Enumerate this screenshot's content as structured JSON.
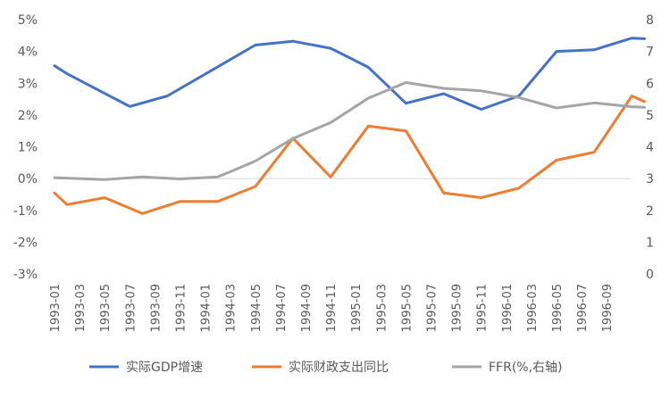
{
  "chart_data": {
    "type": "line",
    "x": [
      "1993-01",
      "1993-02",
      "1993-03",
      "1993-04",
      "1993-05",
      "1993-06",
      "1993-07",
      "1993-08",
      "1993-09",
      "1993-10",
      "1993-11",
      "1993-12",
      "1994-01",
      "1994-02",
      "1994-03",
      "1994-04",
      "1994-05",
      "1994-06",
      "1994-07",
      "1994-08",
      "1994-09",
      "1994-10",
      "1994-11",
      "1994-12",
      "1995-01",
      "1995-02",
      "1995-03",
      "1995-04",
      "1995-05",
      "1995-06",
      "1995-07",
      "1995-08",
      "1995-09",
      "1995-10",
      "1995-11",
      "1995-12",
      "1996-01",
      "1996-02",
      "1996-03",
      "1996-04",
      "1996-05",
      "1996-06",
      "1996-07",
      "1996-08",
      "1996-09",
      "1996-10",
      "1996-11"
    ],
    "x_tick_labels": [
      "1993-01",
      "1993-03",
      "1993-05",
      "1993-07",
      "1993-09",
      "1993-11",
      "1994-01",
      "1994-03",
      "1994-05",
      "1994-07",
      "1994-09",
      "1994-11",
      "1995-01",
      "1995-03",
      "1995-05",
      "1995-07",
      "1995-09",
      "1995-11",
      "1996-01",
      "1996-03",
      "1996-05",
      "1996-07",
      "1996-09"
    ],
    "y_left": {
      "min": -3,
      "max": 5,
      "ticks": [
        "-3%",
        "-2%",
        "-1%",
        "0%",
        "1%",
        "2%",
        "3%",
        "4%",
        "5%"
      ]
    },
    "y_right": {
      "min": 0,
      "max": 8,
      "ticks": [
        "0",
        "1",
        "2",
        "3",
        "4",
        "5",
        "6",
        "7",
        "8"
      ]
    },
    "grid": false,
    "legend_position": "bottom",
    "series": [
      {
        "name": "实际GDP增速",
        "color": "#4472C4",
        "axis": "left",
        "points": [
          [
            "1993-01",
            3.55
          ],
          [
            "1993-02",
            3.3
          ],
          [
            "1993-07",
            2.27
          ],
          [
            "1993-10",
            2.6
          ],
          [
            "1994-05",
            4.2
          ],
          [
            "1994-08",
            4.32
          ],
          [
            "1994-11",
            4.1
          ],
          [
            "1995-02",
            3.5
          ],
          [
            "1995-05",
            2.37
          ],
          [
            "1995-08",
            2.67
          ],
          [
            "1995-11",
            2.18
          ],
          [
            "1996-02",
            2.6
          ],
          [
            "1996-05",
            4.0
          ],
          [
            "1996-08",
            4.05
          ],
          [
            "1996-11",
            4.42
          ],
          [
            "1996-12",
            4.4
          ]
        ]
      },
      {
        "name": "实际财政支出同比",
        "color": "#ED7D31",
        "axis": "left",
        "points": [
          [
            "1993-01",
            -0.45
          ],
          [
            "1993-02",
            -0.82
          ],
          [
            "1993-05",
            -0.6
          ],
          [
            "1993-08",
            -1.1
          ],
          [
            "1993-11",
            -0.72
          ],
          [
            "1994-02",
            -0.72
          ],
          [
            "1994-05",
            -0.25
          ],
          [
            "1994-08",
            1.27
          ],
          [
            "1994-11",
            0.05
          ],
          [
            "1995-02",
            1.65
          ],
          [
            "1995-05",
            1.5
          ],
          [
            "1995-08",
            -0.45
          ],
          [
            "1995-11",
            -0.6
          ],
          [
            "1996-02",
            -0.3
          ],
          [
            "1996-05",
            0.58
          ],
          [
            "1996-08",
            0.83
          ],
          [
            "1996-11",
            2.6
          ],
          [
            "1996-12",
            2.42
          ]
        ]
      },
      {
        "name": "FFR(%,右轴)",
        "color": "#A5A5A5",
        "axis": "right",
        "points": [
          [
            "1993-01",
            3.03
          ],
          [
            "1993-05",
            2.97
          ],
          [
            "1993-08",
            3.05
          ],
          [
            "1993-11",
            2.99
          ],
          [
            "1994-02",
            3.05
          ],
          [
            "1994-05",
            3.55
          ],
          [
            "1994-08",
            4.26
          ],
          [
            "1994-11",
            4.76
          ],
          [
            "1995-02",
            5.53
          ],
          [
            "1995-05",
            6.02
          ],
          [
            "1995-08",
            5.84
          ],
          [
            "1995-11",
            5.76
          ],
          [
            "1996-02",
            5.55
          ],
          [
            "1996-05",
            5.22
          ],
          [
            "1996-08",
            5.38
          ],
          [
            "1996-11",
            5.26
          ],
          [
            "1996-12",
            5.24
          ]
        ]
      }
    ]
  }
}
